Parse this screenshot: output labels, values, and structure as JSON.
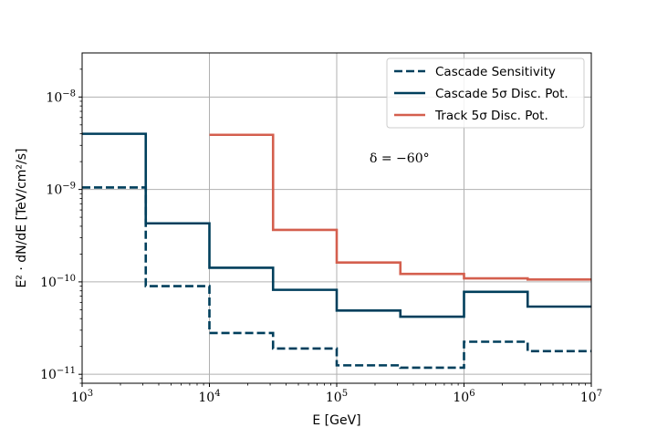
{
  "chart_data": {
    "type": "line",
    "step": "post",
    "title": "",
    "xlabel": "E [GeV]",
    "ylabel": "E² · dN/dE [TeV/cm²/s]",
    "xscale": "log",
    "yscale": "log",
    "xlim": [
      1000,
      10000000
    ],
    "ylim": [
      8e-12,
      3e-08
    ],
    "grid": true,
    "legend_position": "top-right",
    "x_ticks": [
      {
        "value": 1000,
        "label": "10^3"
      },
      {
        "value": 10000,
        "label": "10^4"
      },
      {
        "value": 100000,
        "label": "10^5"
      },
      {
        "value": 1000000,
        "label": "10^6"
      },
      {
        "value": 10000000,
        "label": "10^7"
      }
    ],
    "y_ticks": [
      {
        "value": 1e-11,
        "label": "10^-11"
      },
      {
        "value": 1e-10,
        "label": "10^-10"
      },
      {
        "value": 1e-09,
        "label": "10^-9"
      },
      {
        "value": 1e-08,
        "label": "10^-8"
      }
    ],
    "annotation": "δ = −60°",
    "series": [
      {
        "name": "Cascade Sensitivity",
        "color": "#003f5c",
        "style": "dashed",
        "x": [
          1000,
          3162,
          10000,
          31623,
          100000,
          316228,
          1000000,
          3162278,
          10000000
        ],
        "values": [
          1.05e-09,
          9e-11,
          2.8e-11,
          1.9e-11,
          1.25e-11,
          1.18e-11,
          2.25e-11,
          1.78e-11,
          1.78e-11
        ]
      },
      {
        "name": "Cascade 5σ Disc. Pot.",
        "color": "#003f5c",
        "style": "solid",
        "x": [
          1000,
          3162,
          10000,
          31623,
          100000,
          316228,
          1000000,
          3162278,
          10000000
        ],
        "values": [
          4e-09,
          4.3e-10,
          1.42e-10,
          8.2e-11,
          4.9e-11,
          4.2e-11,
          7.8e-11,
          5.4e-11,
          5.4e-11
        ]
      },
      {
        "name": "Track 5σ Disc. Pot.",
        "color": "#d45f4e",
        "style": "solid",
        "x": [
          10000,
          31623,
          100000,
          316228,
          1000000,
          3162278,
          10000000
        ],
        "values": [
          3.9e-09,
          3.65e-10,
          1.62e-10,
          1.22e-10,
          1.09e-10,
          1.06e-10,
          1.06e-10
        ]
      }
    ]
  }
}
